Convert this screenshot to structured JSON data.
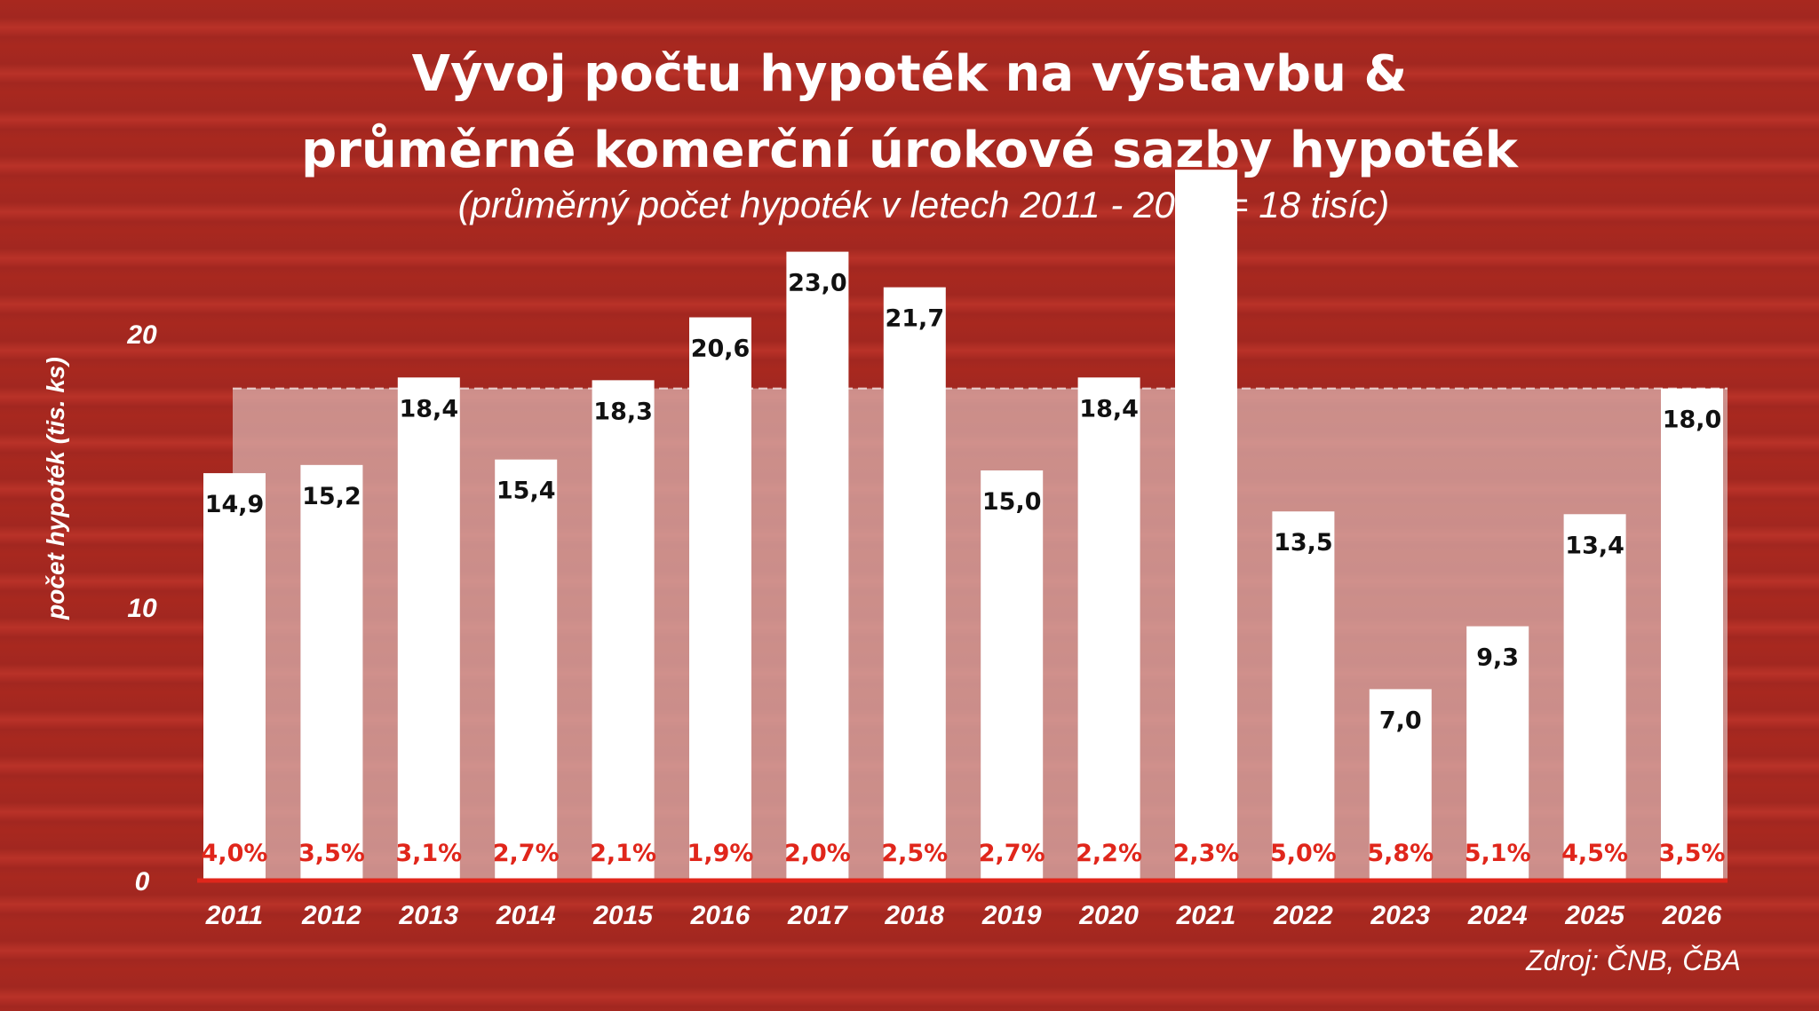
{
  "chart_data": {
    "type": "bar",
    "title_line1": "Vývoj počtu hypoték na výstavbu &",
    "title_line2": "průměrné komerční úrokové sazby hypoték",
    "subtitle": "(průměrný počet hypoték v letech 2011 - 2019 = 18 tisíc)",
    "ylabel": "počet hypoték (tis. ks)",
    "xlabel": "",
    "ylim": [
      0,
      25
    ],
    "yticks": [
      "0",
      "10",
      "20"
    ],
    "ytick_values": [
      0,
      10,
      20
    ],
    "average_value": 18,
    "categories": [
      "2011",
      "2012",
      "2013",
      "2014",
      "2015",
      "2016",
      "2017",
      "2018",
      "2019",
      "2020",
      "2021",
      "2022",
      "2023",
      "2024",
      "2025",
      "2026"
    ],
    "values": [
      14.9,
      15.2,
      18.4,
      15.4,
      18.3,
      20.6,
      23.0,
      21.7,
      15.0,
      18.4,
      26.0,
      13.5,
      7.0,
      9.3,
      13.4,
      18.0
    ],
    "value_labels": [
      "14,9",
      "15,2",
      "18,4",
      "15,4",
      "18,3",
      "20,6",
      "23,0",
      "21,7",
      "15,0",
      "18,4",
      "",
      "13,5",
      "7,0",
      "9,3",
      "13,4",
      "18,0"
    ],
    "rate_labels": [
      "4,0%",
      "3,5%",
      "3,1%",
      "2,7%",
      "2,1%",
      "1,9%",
      "2,0%",
      "2,5%",
      "2,7%",
      "2,2%",
      "2,3%",
      "5,0%",
      "5,8%",
      "5,1%",
      "4,5%",
      "3,5%"
    ],
    "source": "Zdroj: ČNB, ČBA",
    "colors": {
      "background": "#a8281f",
      "bar": "#ffffff",
      "average_band": "#d8b0ad",
      "rate_text": "#e0261b",
      "baseline": "#e0261b",
      "value_text": "#111111"
    }
  }
}
